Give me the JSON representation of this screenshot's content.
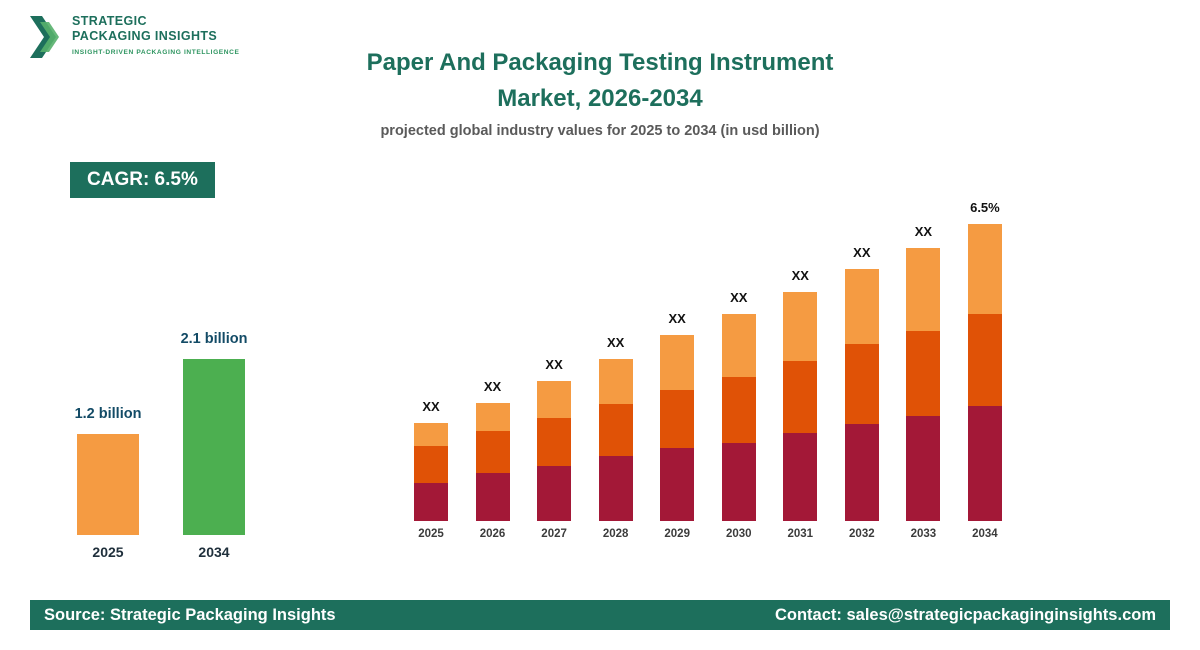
{
  "brand": {
    "name_line1": "STRATEGIC",
    "name_line2": "PACKAGING INSIGHTS",
    "tagline": "INSIGHT-DRIVEN PACKAGING INTELLIGENCE"
  },
  "header": {
    "title_line1": "Paper And Packaging Testing Instrument",
    "title_line2": "Market, 2026-2034",
    "subtitle": "projected global industry values for 2025 to 2034 (in usd billion)"
  },
  "cagr_badge": "CAGR: 6.5%",
  "footer": {
    "source": "Source: Strategic Packaging Insights",
    "contact": "Contact: sales@strategicpackaginginsights.com"
  },
  "colors": {
    "brand_green": "#1D6F5C",
    "bar_green": "#4CAF50",
    "bar_light_orange": "#F59B42",
    "bar_dark_orange": "#E05206",
    "bar_maroon": "#A31837"
  },
  "chart_data": [
    {
      "id": "comparison-chart",
      "type": "bar",
      "title": "",
      "categories": [
        "2025",
        "2034"
      ],
      "values": [
        1.2,
        2.1
      ],
      "value_labels": [
        "1.2 billion",
        "2.1 billion"
      ],
      "colors": [
        "#F59B42",
        "#4CAF50"
      ],
      "unit": "usd billion",
      "legend": "none",
      "grid": false
    },
    {
      "id": "stacked-market-chart",
      "type": "bar",
      "stacked": true,
      "title": "Paper And Packaging Testing Instrument Market, 2026-2034",
      "categories": [
        "2025",
        "2026",
        "2027",
        "2028",
        "2029",
        "2030",
        "2031",
        "2032",
        "2033",
        "2034"
      ],
      "series": [
        {
          "name": "segment-bottom",
          "color": "#A31837",
          "values": [
            38,
            48,
            55,
            65,
            73,
            78,
            88,
            97,
            105,
            115
          ]
        },
        {
          "name": "segment-middle",
          "color": "#E05206",
          "values": [
            37,
            42,
            48,
            52,
            58,
            66,
            72,
            80,
            85,
            92
          ]
        },
        {
          "name": "segment-top",
          "color": "#F59B42",
          "values": [
            23,
            28,
            37,
            45,
            55,
            63,
            69,
            75,
            83,
            90
          ]
        }
      ],
      "bar_labels": [
        "XX",
        "XX",
        "XX",
        "XX",
        "XX",
        "XX",
        "XX",
        "XX",
        "XX",
        "6.5%"
      ],
      "note": "values masked as XX on chart; series values are relative estimated heights",
      "grid": false,
      "legend": "none"
    }
  ]
}
